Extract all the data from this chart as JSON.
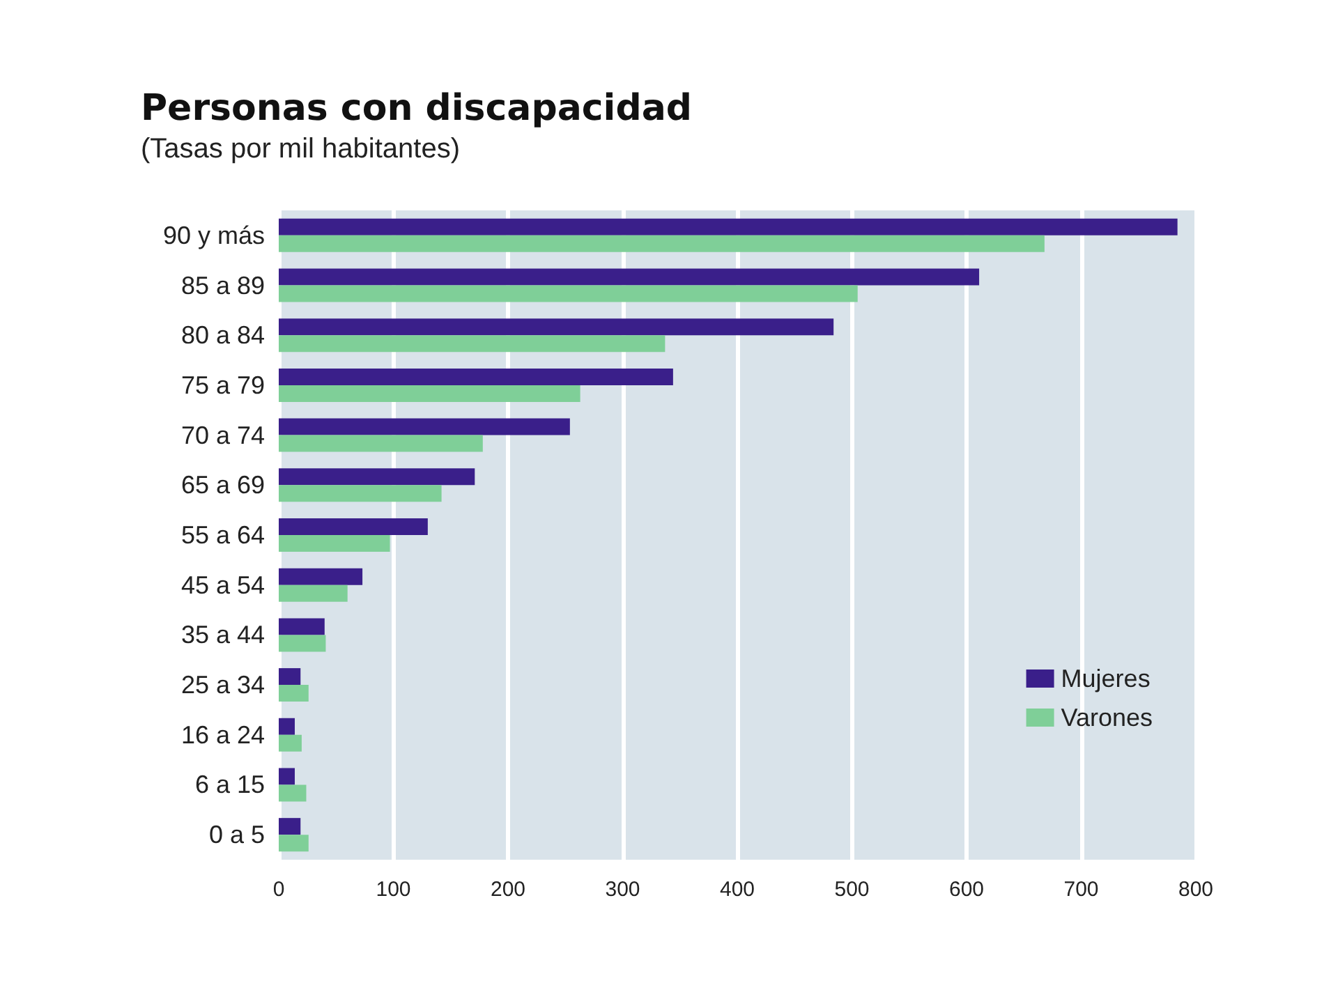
{
  "chart_data": {
    "type": "bar",
    "orientation": "horizontal",
    "title": "Personas con discapacidad",
    "subtitle": "(Tasas por mil habitantes)",
    "categories": [
      "90 y más",
      "85 a 89",
      "80 a 84",
      "75 a 79",
      "70 a 74",
      "65 a 69",
      "55 a 64",
      "45 a 54",
      "35 a 44",
      "25 a 34",
      "16 a 24",
      "6 a 15",
      "0 a 5"
    ],
    "series": [
      {
        "name": "Mujeres",
        "color": "#3a1f8a",
        "values": [
          784,
          611,
          484,
          344,
          254,
          171,
          130,
          73,
          40,
          19,
          14,
          14,
          19
        ]
      },
      {
        "name": "Varones",
        "color": "#7fcf98",
        "values": [
          668,
          505,
          337,
          263,
          178,
          142,
          97,
          60,
          41,
          26,
          20,
          24,
          26
        ]
      }
    ],
    "xlim": [
      0,
      800
    ],
    "xticks": [
      0,
      100,
      200,
      300,
      400,
      500,
      600,
      700,
      800
    ],
    "grid": "x",
    "legend": "bottom right"
  }
}
